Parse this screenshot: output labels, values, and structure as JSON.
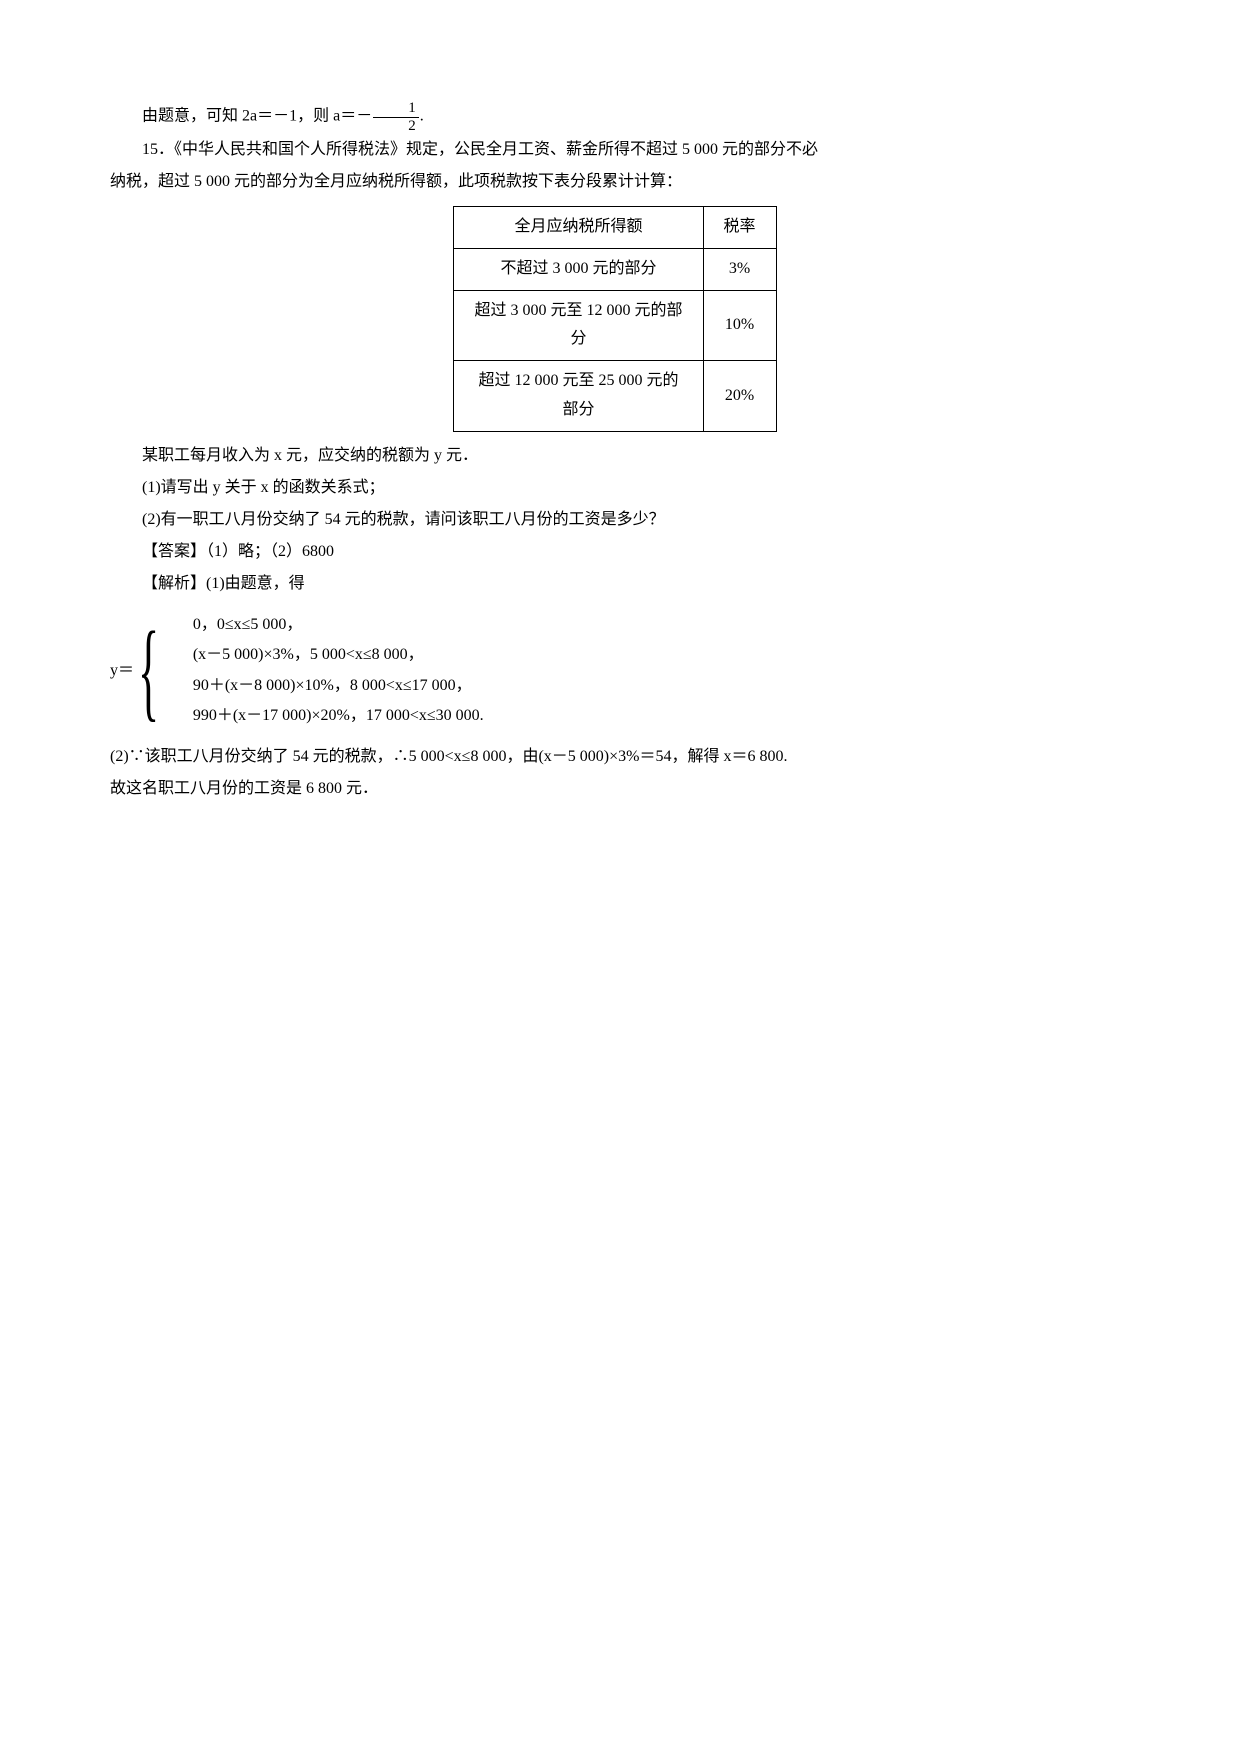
{
  "prelude": {
    "line": "由题意，可知 2a＝－1，则 a＝－",
    "frac_num": "1",
    "frac_den": "2",
    "period": "."
  },
  "problem15": {
    "intro1": "15．《中华人民共和国个人所得税法》规定，公民全月工资、薪金所得不超过 5 000 元的部分不必",
    "intro2": "纳税，超过 5 000 元的部分为全月应纳税所得额，此项税款按下表分段累计计算：",
    "table": {
      "header_col1": "全月应纳税所得额",
      "header_col2": "税率",
      "rows": [
        {
          "bracket": "不超过 3 000 元的部分",
          "rate": "3%"
        },
        {
          "bracket": "超过 3 000 元至 12 000 元的部分",
          "rate": "10%"
        },
        {
          "bracket": "超过 12 000 元至 25 000 元的部分",
          "rate": "20%"
        }
      ]
    },
    "after_table": "某职工每月收入为 x 元，应交纳的税额为 y 元．",
    "q1": "(1)请写出 y 关于 x 的函数关系式；",
    "q2": "(2)有一职工八月份交纳了 54 元的税款，请问该职工八月份的工资是多少？",
    "answer": "【答案】（1）略；（2）6800",
    "analysis_head": "【解析】(1)由题意，得",
    "piecewise": {
      "lhs": "y＝",
      "cases": [
        "0，0≤x≤5 000，",
        "(x－5 000)×3%，5 000<x≤8 000，",
        "90＋(x－8 000)×10%，8 000<x≤17 000，",
        "990＋(x－17 000)×20%，17 000<x≤30 000."
      ]
    },
    "part2_line1": "(2)∵该职工八月份交纳了 54 元的税款，∴5 000<x≤8 000，由(x－5 000)×3%＝54，解得 x＝6 800.",
    "part2_line2": "故这名职工八月份的工资是 6 800 元．"
  }
}
